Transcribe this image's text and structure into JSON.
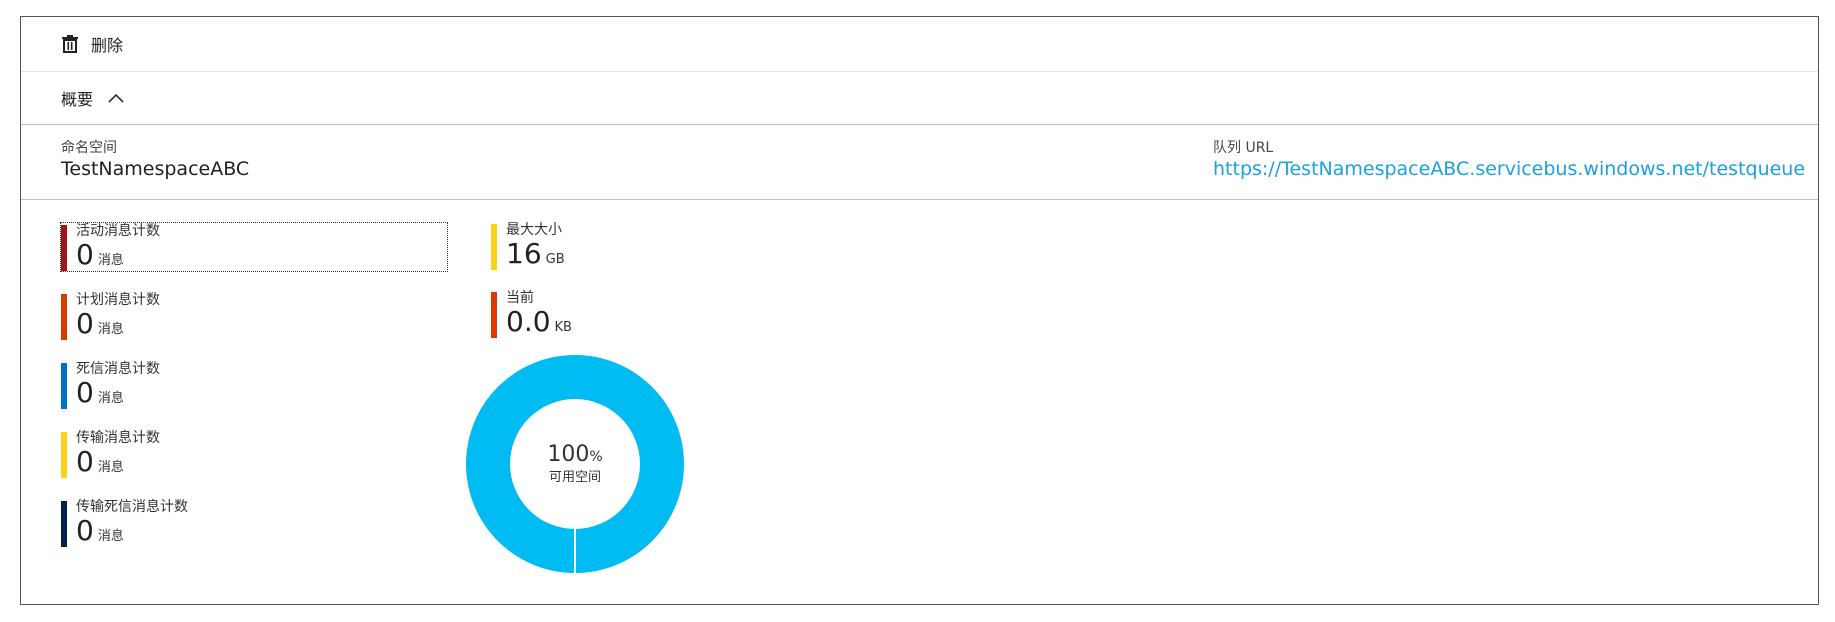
{
  "toolbar": {
    "delete_label": "删除",
    "delete_icon": "trash-icon"
  },
  "essentials": {
    "label": "概要",
    "toggle_icon": "chevron-up-icon"
  },
  "info": {
    "namespace_label": "命名空间",
    "namespace_value": "TestNamespaceABC",
    "queue_url_label": "队列 URL",
    "queue_url_value": "https://TestNamespaceABC.servicebus.windows.net/testqueue"
  },
  "message_counts": [
    {
      "label": "活动消息计数",
      "value": "0",
      "unit": "消息",
      "color": "#a31515"
    },
    {
      "label": "计划消息计数",
      "value": "0",
      "unit": "消息",
      "color": "#d83b01"
    },
    {
      "label": "死信消息计数",
      "value": "0",
      "unit": "消息",
      "color": "#0072c6"
    },
    {
      "label": "传输消息计数",
      "value": "0",
      "unit": "消息",
      "color": "#fcd116"
    },
    {
      "label": "传输死信消息计数",
      "value": "0",
      "unit": "消息",
      "color": "#002050"
    }
  ],
  "size": {
    "max": {
      "label": "最大大小",
      "value": "16",
      "unit": "GB",
      "color": "#fcd116"
    },
    "current": {
      "label": "当前",
      "value": "0.0",
      "unit": "KB",
      "color": "#d83b01"
    }
  },
  "donut": {
    "value": "100",
    "unit": "%",
    "label": "可用空间",
    "fraction_available": 1.0,
    "color": "#00bcf2"
  }
}
